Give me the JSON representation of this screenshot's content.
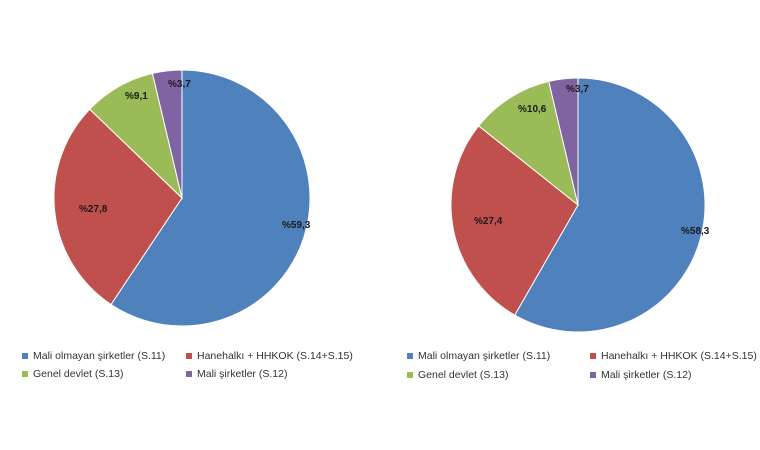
{
  "colors": {
    "mali_olmayan": "#4f81bd",
    "hanehalki": "#c0504d",
    "genel_devlet": "#9bbb59",
    "mali_sirketler": "#8064a2"
  },
  "chart_data": [
    {
      "type": "pie",
      "title": "",
      "slices": [
        {
          "name": "Mali olmayan şirketler (S.11)",
          "value": 59.3,
          "label": "%59,3",
          "color": "#4f81bd"
        },
        {
          "name": "Hanehalkı + HHKOK (S.14+S.15)",
          "value": 27.8,
          "label": "%27,8",
          "color": "#c0504d"
        },
        {
          "name": "Genel devlet (S.13)",
          "value": 9.1,
          "label": "%9,1",
          "color": "#9bbb59"
        },
        {
          "name": "Mali şirketler (S.12)",
          "value": 3.7,
          "label": "%3,7",
          "color": "#8064a2"
        }
      ],
      "legend": {
        "position": "bottom",
        "items": [
          "Mali olmayan şirketler (S.11)",
          "Hanehalkı + HHKOK (S.14+S.15)",
          "Genel devlet (S.13)",
          "Mali şirketler (S.12)"
        ]
      }
    },
    {
      "type": "pie",
      "title": "",
      "slices": [
        {
          "name": "Mali olmayan şirketler (S.11)",
          "value": 58.3,
          "label": "%58,3",
          "color": "#4f81bd"
        },
        {
          "name": "Hanehalkı + HHKOK (S.14+S.15)",
          "value": 27.4,
          "label": "%27,4",
          "color": "#c0504d"
        },
        {
          "name": "Genel devlet (S.13)",
          "value": 10.6,
          "label": "%10,6",
          "color": "#9bbb59"
        },
        {
          "name": "Mali şirketler (S.12)",
          "value": 3.7,
          "label": "%3,7",
          "color": "#8064a2"
        }
      ],
      "legend": {
        "position": "bottom",
        "items": [
          "Mali olmayan şirketler (S.11)",
          "Hanehalkı + HHKOK (S.14+S.15)",
          "Genel devlet (S.13)",
          "Mali şirketler (S.12)"
        ]
      }
    }
  ]
}
